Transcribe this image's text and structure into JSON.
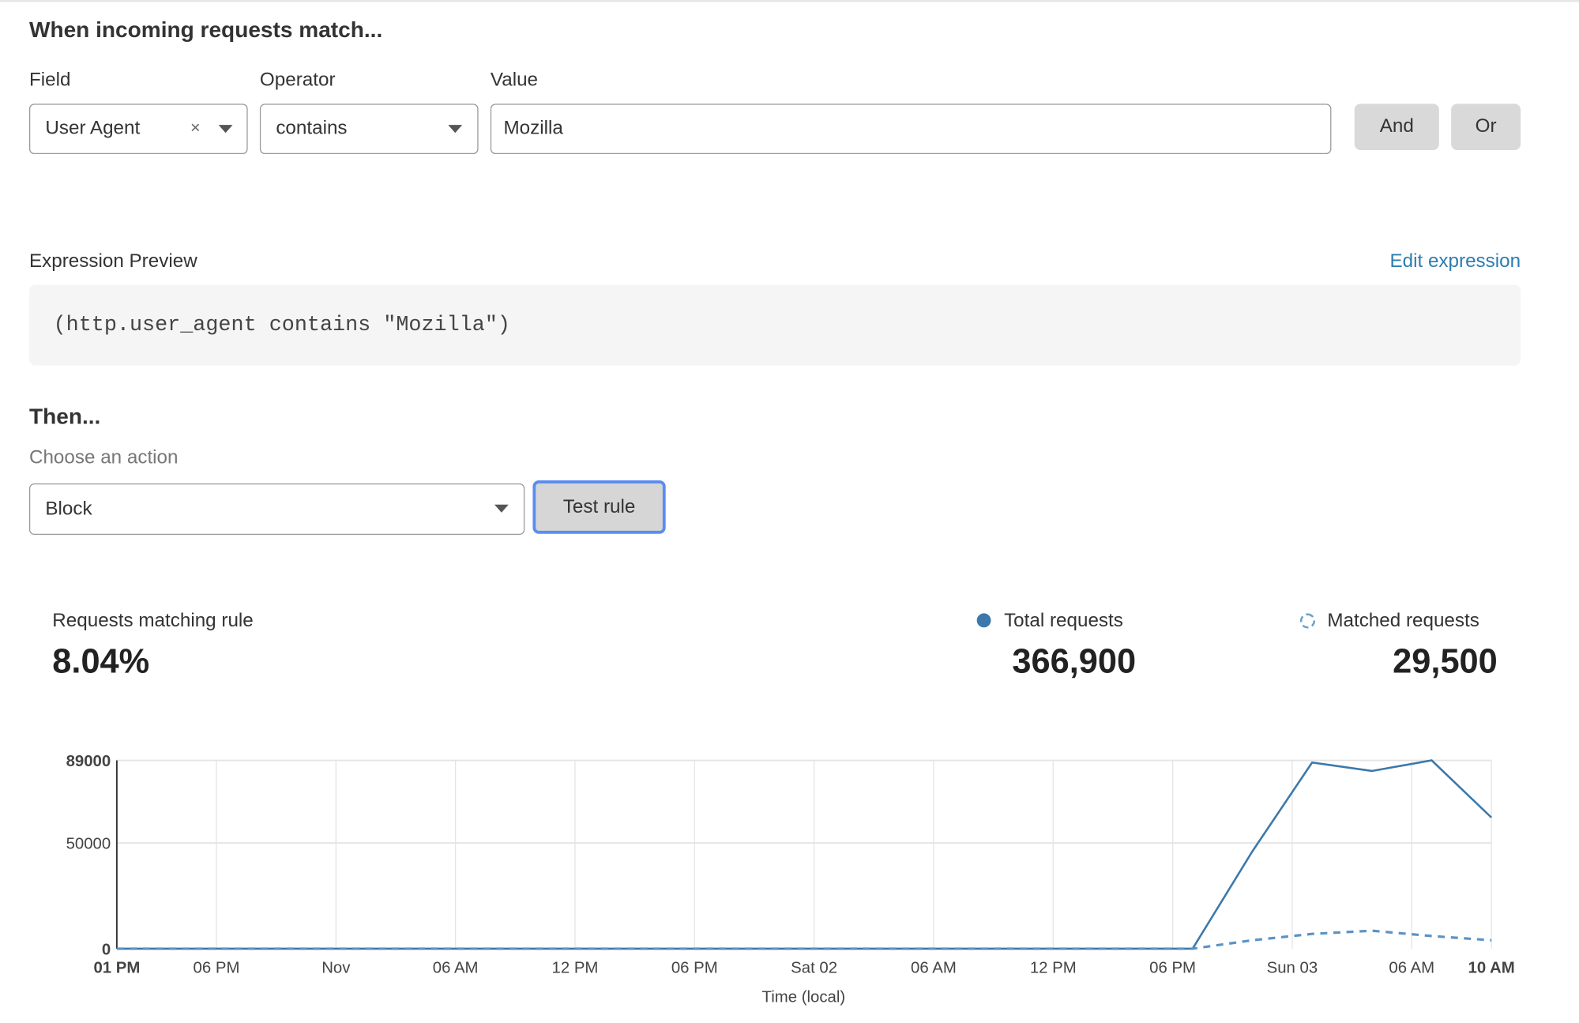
{
  "match": {
    "heading": "When incoming requests match...",
    "field_label": "Field",
    "operator_label": "Operator",
    "value_label": "Value",
    "field_value": "User Agent",
    "clear_symbol": "×",
    "operator_value": "contains",
    "value_value": "Mozilla",
    "and_label": "And",
    "or_label": "Or"
  },
  "expression": {
    "label": "Expression Preview",
    "edit_link": "Edit expression",
    "text": "(http.user_agent contains \"Mozilla\")"
  },
  "then": {
    "heading": "Then...",
    "choose_label": "Choose an action",
    "action_value": "Block",
    "test_button": "Test rule"
  },
  "stats": {
    "matching_label": "Requests matching rule",
    "matching_value": "8.04%",
    "total_label": "Total requests",
    "total_value": "366,900",
    "matched_label": "Matched requests",
    "matched_value": "29,500"
  },
  "colors": {
    "accent": "#3b78ab",
    "link": "#2c7cb0",
    "button_focus": "#5b8def"
  },
  "chart_data": {
    "type": "line",
    "xlabel": "Time (local)",
    "ylabel": "",
    "ylim": [
      0,
      89000
    ],
    "y_ticks": [
      "0",
      "50000",
      "89000"
    ],
    "x_ticks": [
      "01 PM",
      "06 PM",
      "Nov",
      "06 AM",
      "12 PM",
      "06 PM",
      "Sat 02",
      "06 AM",
      "12 PM",
      "06 PM",
      "Sun 03",
      "06 AM",
      "10 AM"
    ],
    "x_tick_hours": [
      0,
      5,
      11,
      17,
      23,
      29,
      35,
      41,
      47,
      53,
      59,
      65,
      69
    ],
    "x_hours": [
      0,
      3,
      6,
      9,
      12,
      15,
      18,
      21,
      24,
      27,
      30,
      33,
      36,
      39,
      42,
      45,
      48,
      51,
      54,
      57,
      60,
      63,
      66,
      69
    ],
    "grid": true,
    "series": [
      {
        "name": "Total requests",
        "style": "solid",
        "values": [
          0,
          0,
          0,
          0,
          0,
          0,
          0,
          0,
          0,
          0,
          0,
          0,
          0,
          0,
          0,
          0,
          0,
          0,
          0,
          46000,
          88000,
          84000,
          89000,
          62000
        ]
      },
      {
        "name": "Matched requests",
        "style": "dashed",
        "values": [
          0,
          0,
          0,
          0,
          0,
          0,
          0,
          0,
          0,
          0,
          0,
          0,
          0,
          0,
          0,
          0,
          0,
          0,
          0,
          4000,
          7000,
          8500,
          6000,
          4000
        ]
      }
    ]
  }
}
